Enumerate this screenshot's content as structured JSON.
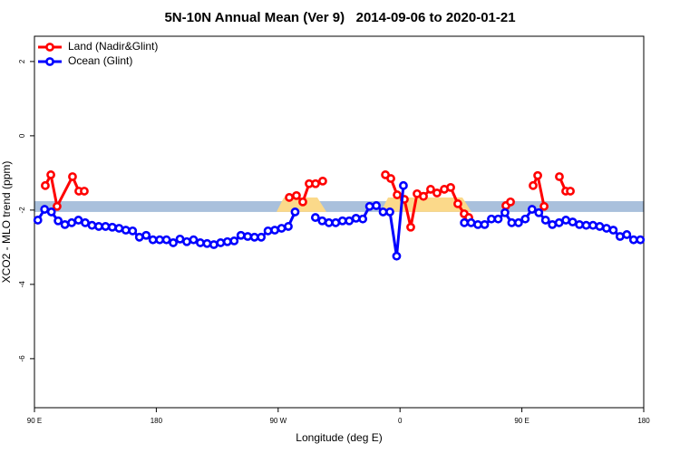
{
  "chart_data": {
    "type": "line",
    "title": "5N-10N Annual Mean (Ver 9)   2014-09-06 to 2020-01-21",
    "x_label": "Longitude (deg E)",
    "y_label": "XCO2 - MLO trend (ppm)",
    "xlim": [
      90,
      540
    ],
    "xticks": [
      {
        "value": 90,
        "label": "90 E"
      },
      180,
      {
        "value": 270,
        "label": "90 W"
      },
      {
        "value": 360,
        "label": "0"
      },
      {
        "value": 450,
        "label": "90 E"
      },
      {
        "value": 540,
        "label": "180"
      }
    ],
    "ylim": [
      -7.32,
      2.68
    ],
    "yticks": [
      2,
      0,
      -2,
      -4,
      -6
    ],
    "reference_band": [
      -2.05,
      -1.76
    ],
    "legend": "top-left",
    "series": [
      {
        "name": "Land (Nadir&Glint)",
        "color": "#ff0000",
        "x": [
          98.0,
          102.1,
          106.7,
          118.1,
          122.8,
          126.8,
          null,
          278.2,
          283.5,
          288.2,
          292.9,
          297.6,
          302.9,
          null,
          349.2,
          353.2,
          357.9,
          363.2,
          367.9,
          372.6,
          377.3,
          382.6,
          387.3,
          392.7,
          397.4,
          402.7,
          407.4,
          410.8,
          null,
          438.2,
          441.6,
          null,
          458.3,
          461.7,
          466.4,
          null,
          477.7,
          482.4,
          485.8
        ],
        "values": [
          -1.34,
          -1.05,
          -1.9,
          -1.1,
          -1.49,
          -1.49,
          null,
          -1.66,
          -1.61,
          -1.78,
          -1.29,
          -1.29,
          -1.22,
          null,
          -1.05,
          -1.15,
          -1.59,
          -1.71,
          -2.46,
          -1.56,
          -1.63,
          -1.44,
          -1.54,
          -1.44,
          -1.39,
          -1.83,
          -2.1,
          -2.2,
          null,
          -1.88,
          -1.78,
          null,
          -1.34,
          -1.07,
          -1.9,
          null,
          -1.1,
          -1.49,
          -1.49
        ]
      },
      {
        "name": "Ocean (Glint)",
        "color": "#0000ff",
        "x": [
          92.5,
          97.5,
          102.5,
          107.5,
          112.5,
          117.5,
          122.5,
          127.5,
          132.5,
          137.5,
          142.5,
          147.5,
          152.5,
          157.5,
          162.5,
          167.5,
          172.5,
          177.5,
          182.5,
          187.5,
          192.5,
          197.5,
          202.5,
          207.5,
          212.5,
          217.5,
          222.5,
          227.5,
          232.5,
          237.5,
          242.5,
          247.5,
          252.5,
          257.5,
          262.5,
          267.5,
          272.5,
          277.5,
          282.5,
          null,
          297.5,
          302.5,
          307.5,
          312.5,
          317.5,
          322.5,
          327.5,
          332.5,
          337.5,
          342.5,
          347.5,
          352.5,
          357.5,
          362.5,
          null,
          407.5,
          412.5,
          417.5,
          422.5,
          427.5,
          432.5,
          437.5,
          442.5,
          447.5,
          452.5,
          457.5,
          462.5,
          467.5,
          472.5,
          477.5,
          482.5,
          487.5,
          492.5,
          497.5,
          502.5,
          507.5,
          512.5,
          517.5,
          522.5,
          527.5,
          532.5,
          537.5
        ],
        "values": [
          -2.27,
          -1.98,
          -2.05,
          -2.29,
          -2.39,
          -2.34,
          -2.27,
          -2.34,
          -2.41,
          -2.44,
          -2.44,
          -2.46,
          -2.49,
          -2.54,
          -2.56,
          -2.73,
          -2.68,
          -2.8,
          -2.8,
          -2.8,
          -2.88,
          -2.78,
          -2.85,
          -2.8,
          -2.88,
          -2.9,
          -2.93,
          -2.88,
          -2.85,
          -2.83,
          -2.68,
          -2.71,
          -2.73,
          -2.73,
          -2.56,
          -2.54,
          -2.49,
          -2.44,
          -2.05,
          null,
          -2.2,
          -2.29,
          -2.34,
          -2.34,
          -2.29,
          -2.29,
          -2.22,
          -2.24,
          -1.9,
          -1.88,
          -2.05,
          -2.05,
          -3.24,
          -1.34,
          null,
          -2.34,
          -2.34,
          -2.39,
          -2.39,
          -2.24,
          -2.24,
          -2.07,
          -2.34,
          -2.34,
          -2.24,
          -1.98,
          -2.07,
          -2.27,
          -2.39,
          -2.34,
          -2.27,
          -2.32,
          -2.39,
          -2.41,
          -2.41,
          -2.44,
          -2.49,
          -2.54,
          -2.71,
          -2.66,
          -2.8,
          -2.8
        ]
      }
    ]
  }
}
